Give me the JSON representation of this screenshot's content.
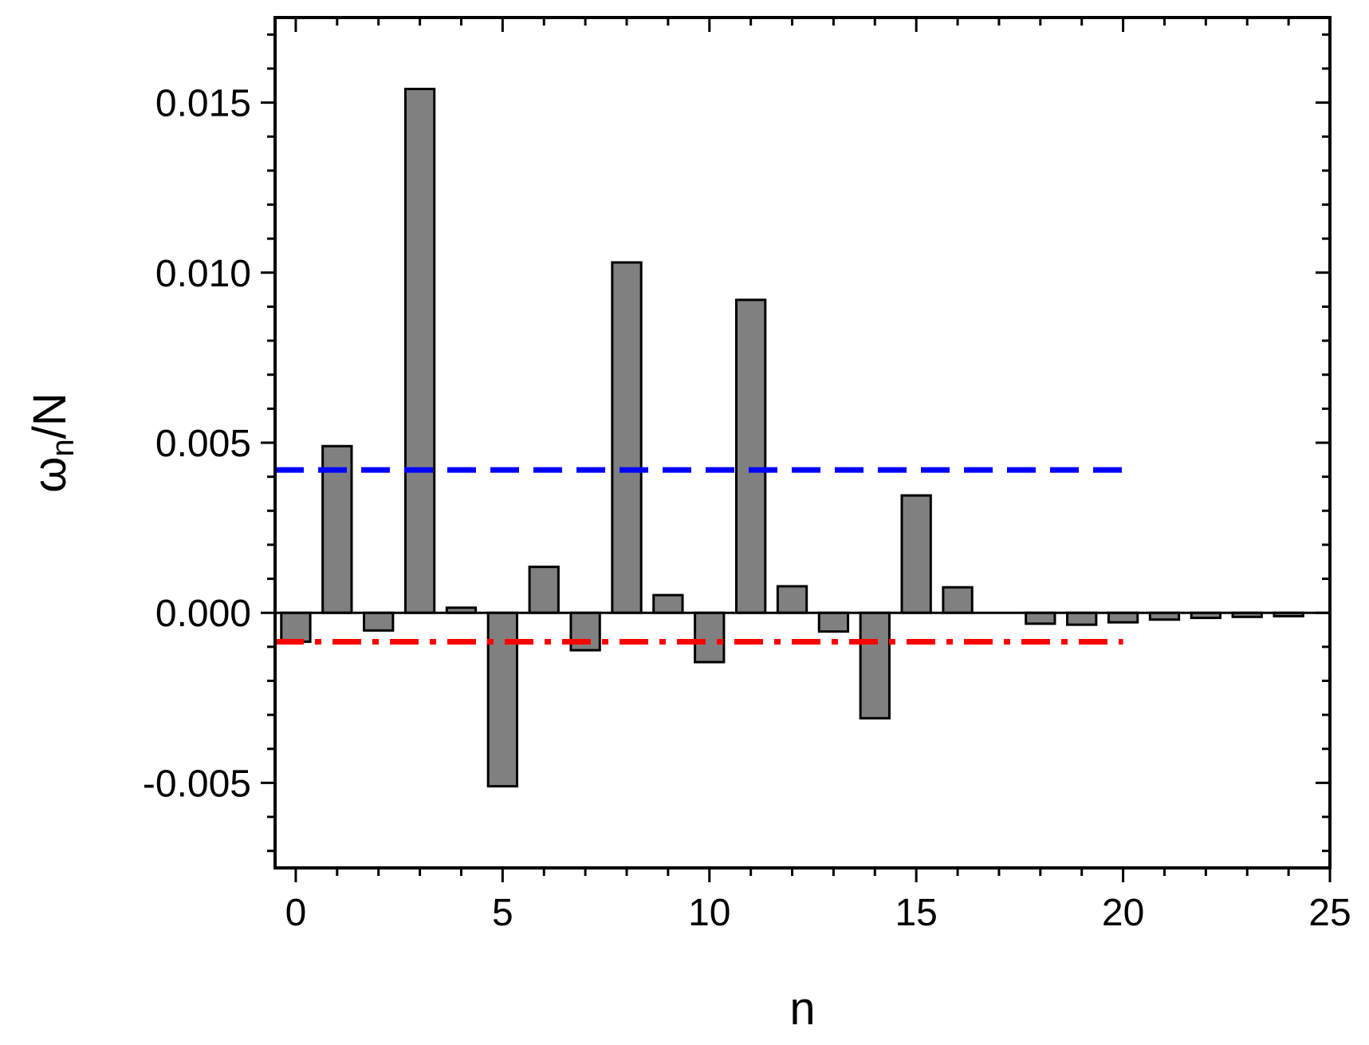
{
  "chart_data": {
    "type": "bar",
    "xlabel": "n",
    "ylabel": {
      "symbol": "ω",
      "subscript": "n",
      "suffix": "/N"
    },
    "xlim": [
      -0.5,
      25
    ],
    "ylim": [
      -0.0075,
      0.0175
    ],
    "xticks": [
      0,
      5,
      10,
      15,
      20,
      25
    ],
    "xtick_labels": [
      "0",
      "5",
      "10",
      "15",
      "20",
      "25"
    ],
    "yticks": [
      -0.005,
      0.0,
      0.005,
      0.01,
      0.015
    ],
    "ytick_labels": [
      "-0.005",
      "0.000",
      "0.005",
      "0.010",
      "0.015"
    ],
    "x": [
      0,
      1,
      2,
      3,
      4,
      5,
      6,
      7,
      8,
      9,
      10,
      11,
      12,
      13,
      14,
      15,
      16,
      17,
      18,
      19,
      20,
      21,
      22,
      23,
      24
    ],
    "values": [
      -0.00085,
      0.0049,
      -0.00052,
      0.0154,
      0.00015,
      -0.0051,
      0.00135,
      -0.0011,
      0.0103,
      0.00052,
      -0.00145,
      0.0092,
      0.00078,
      -0.00055,
      -0.0031,
      0.00345,
      0.00075,
      0.0,
      -0.00032,
      -0.00035,
      -0.00028,
      -0.0002,
      -0.00015,
      -0.00012,
      -0.0001
    ],
    "bar_color": "#808080",
    "reference_lines": [
      {
        "y": 0.0042,
        "x_range": [
          -0.5,
          20
        ],
        "style": "dashed",
        "color": "#0000ff"
      },
      {
        "y": -0.00085,
        "x_range": [
          -0.5,
          20
        ],
        "style": "dash-dot",
        "color": "#ff0000"
      }
    ],
    "zero_line": true,
    "grid": false
  }
}
